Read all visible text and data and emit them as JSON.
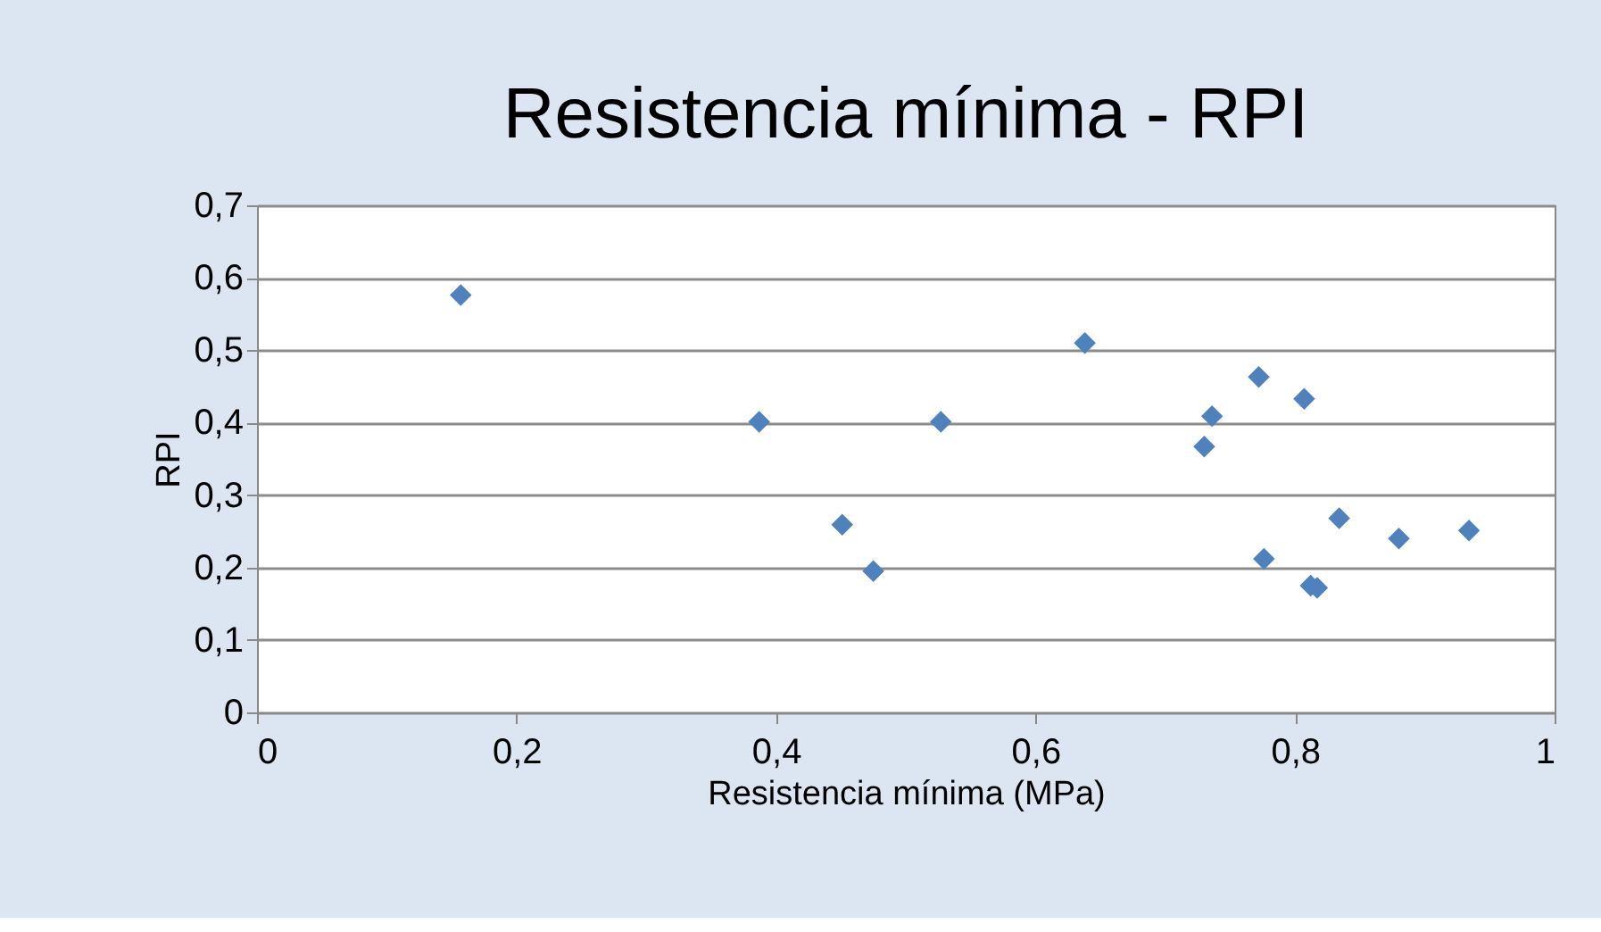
{
  "chart_data": {
    "type": "scatter",
    "title": "Resistencia mínima - RPI",
    "xlabel": "Resistencia mínima (MPa)",
    "ylabel": "RPI",
    "x": [
      0.157,
      0.387,
      0.527,
      0.638,
      0.451,
      0.475,
      0.736,
      0.73,
      0.772,
      0.807,
      0.776,
      0.812,
      0.817,
      0.834,
      0.88,
      0.934
    ],
    "series": [
      {
        "color": "#4f81bd",
        "values": [
          0.576,
          0.401,
          0.401,
          0.51,
          0.259,
          0.195,
          0.409,
          0.367,
          0.463,
          0.433,
          0.212,
          0.175,
          0.172,
          0.268,
          0.24,
          0.251
        ]
      }
    ],
    "xlim": [
      0,
      1
    ],
    "xticks": [
      {
        "value": 0,
        "label": "0"
      },
      {
        "value": 0.2,
        "label": "0,2"
      },
      {
        "value": 0.4,
        "label": "0,4"
      },
      {
        "value": 0.6,
        "label": "0,6"
      },
      {
        "value": 0.8,
        "label": "0,8"
      },
      {
        "value": 1,
        "label": "1"
      }
    ],
    "ylim": [
      0,
      0.7
    ],
    "yticks": [
      {
        "value": 0,
        "label": "0"
      },
      {
        "value": 0.1,
        "label": "0,1"
      },
      {
        "value": 0.2,
        "label": "0,2"
      },
      {
        "value": 0.3,
        "label": "0,3"
      },
      {
        "value": 0.4,
        "label": "0,4"
      },
      {
        "value": 0.5,
        "label": "0,5"
      },
      {
        "value": 0.6,
        "label": "0,6"
      },
      {
        "value": 0.7,
        "label": "0,7"
      }
    ],
    "grid": "y",
    "marker": "diamond"
  }
}
